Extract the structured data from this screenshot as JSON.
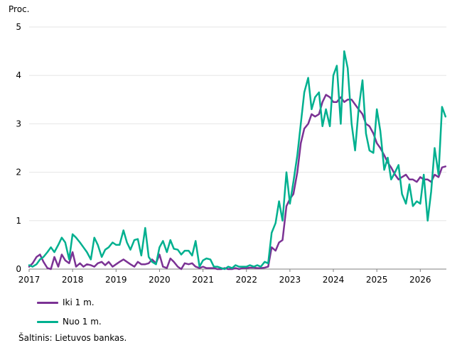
{
  "chart_data": {
    "type": "line",
    "ylabel": "Proc.",
    "ylim": [
      0,
      5
    ],
    "yticks": [
      0,
      1,
      2,
      3,
      4,
      5
    ],
    "xlim": [
      2017.0,
      2026.6
    ],
    "xticks": [
      "2017",
      "2018",
      "2019",
      "2020",
      "2021",
      "2022",
      "2023",
      "2024",
      "2025",
      "2026"
    ],
    "grid": "horizontal",
    "legend_position": "bottom-left",
    "series": [
      {
        "name": "Iki 1 m.",
        "color": "#7B3294",
        "points": [
          [
            2017.0,
            0.05
          ],
          [
            2017.08,
            0.12
          ],
          [
            2017.17,
            0.25
          ],
          [
            2017.25,
            0.3
          ],
          [
            2017.33,
            0.15
          ],
          [
            2017.42,
            0.02
          ],
          [
            2017.5,
            0.0
          ],
          [
            2017.58,
            0.25
          ],
          [
            2017.67,
            0.05
          ],
          [
            2017.75,
            0.3
          ],
          [
            2017.83,
            0.18
          ],
          [
            2017.92,
            0.12
          ],
          [
            2018.0,
            0.35
          ],
          [
            2018.08,
            0.05
          ],
          [
            2018.17,
            0.12
          ],
          [
            2018.25,
            0.05
          ],
          [
            2018.33,
            0.1
          ],
          [
            2018.42,
            0.08
          ],
          [
            2018.5,
            0.05
          ],
          [
            2018.58,
            0.12
          ],
          [
            2018.67,
            0.15
          ],
          [
            2018.75,
            0.08
          ],
          [
            2018.83,
            0.15
          ],
          [
            2018.92,
            0.05
          ],
          [
            2019.0,
            0.1
          ],
          [
            2019.08,
            0.15
          ],
          [
            2019.17,
            0.2
          ],
          [
            2019.25,
            0.15
          ],
          [
            2019.33,
            0.1
          ],
          [
            2019.42,
            0.05
          ],
          [
            2019.5,
            0.15
          ],
          [
            2019.58,
            0.1
          ],
          [
            2019.67,
            0.1
          ],
          [
            2019.75,
            0.12
          ],
          [
            2019.83,
            0.2
          ],
          [
            2019.92,
            0.12
          ],
          [
            2020.0,
            0.3
          ],
          [
            2020.08,
            0.05
          ],
          [
            2020.17,
            0.02
          ],
          [
            2020.25,
            0.22
          ],
          [
            2020.33,
            0.15
          ],
          [
            2020.42,
            0.05
          ],
          [
            2020.5,
            0.0
          ],
          [
            2020.58,
            0.12
          ],
          [
            2020.67,
            0.1
          ],
          [
            2020.75,
            0.12
          ],
          [
            2020.83,
            0.05
          ],
          [
            2020.92,
            0.02
          ],
          [
            2021.0,
            0.05
          ],
          [
            2021.08,
            0.02
          ],
          [
            2021.17,
            0.02
          ],
          [
            2021.25,
            0.02
          ],
          [
            2021.33,
            0.0
          ],
          [
            2021.42,
            0.0
          ],
          [
            2021.5,
            0.02
          ],
          [
            2021.58,
            0.0
          ],
          [
            2021.67,
            0.0
          ],
          [
            2021.75,
            0.02
          ],
          [
            2021.83,
            0.0
          ],
          [
            2021.92,
            0.02
          ],
          [
            2022.0,
            0.02
          ],
          [
            2022.08,
            0.03
          ],
          [
            2022.17,
            0.03
          ],
          [
            2022.25,
            0.02
          ],
          [
            2022.33,
            0.02
          ],
          [
            2022.42,
            0.03
          ],
          [
            2022.5,
            0.05
          ],
          [
            2022.58,
            0.45
          ],
          [
            2022.67,
            0.38
          ],
          [
            2022.75,
            0.55
          ],
          [
            2022.83,
            0.6
          ],
          [
            2022.92,
            1.3
          ],
          [
            2023.0,
            1.45
          ],
          [
            2023.08,
            1.55
          ],
          [
            2023.17,
            2.0
          ],
          [
            2023.25,
            2.6
          ],
          [
            2023.33,
            2.9
          ],
          [
            2023.42,
            3.0
          ],
          [
            2023.5,
            3.2
          ],
          [
            2023.58,
            3.15
          ],
          [
            2023.67,
            3.2
          ],
          [
            2023.75,
            3.45
          ],
          [
            2023.83,
            3.6
          ],
          [
            2023.92,
            3.55
          ],
          [
            2024.0,
            3.45
          ],
          [
            2024.08,
            3.45
          ],
          [
            2024.17,
            3.55
          ],
          [
            2024.25,
            3.45
          ],
          [
            2024.33,
            3.5
          ],
          [
            2024.42,
            3.5
          ],
          [
            2024.5,
            3.4
          ],
          [
            2024.58,
            3.3
          ],
          [
            2024.67,
            3.2
          ],
          [
            2024.75,
            3.0
          ],
          [
            2024.83,
            2.95
          ],
          [
            2024.92,
            2.8
          ],
          [
            2025.0,
            2.6
          ],
          [
            2025.08,
            2.5
          ],
          [
            2025.17,
            2.35
          ],
          [
            2025.25,
            2.2
          ],
          [
            2025.33,
            2.1
          ],
          [
            2025.42,
            1.95
          ],
          [
            2025.5,
            1.85
          ],
          [
            2025.58,
            1.9
          ],
          [
            2025.67,
            1.95
          ],
          [
            2025.75,
            1.85
          ],
          [
            2025.83,
            1.85
          ],
          [
            2025.92,
            1.8
          ],
          [
            2026.0,
            1.9
          ],
          [
            2026.08,
            1.85
          ],
          [
            2026.17,
            1.85
          ],
          [
            2026.25,
            1.8
          ],
          [
            2026.33,
            1.95
          ],
          [
            2026.42,
            1.9
          ],
          [
            2026.5,
            2.1
          ],
          [
            2026.58,
            2.12
          ]
        ]
      },
      {
        "name": "Nuo 1 m.",
        "color": "#00B08F",
        "points": [
          [
            2017.0,
            0.08
          ],
          [
            2017.08,
            0.05
          ],
          [
            2017.17,
            0.1
          ],
          [
            2017.25,
            0.2
          ],
          [
            2017.33,
            0.25
          ],
          [
            2017.42,
            0.35
          ],
          [
            2017.5,
            0.45
          ],
          [
            2017.58,
            0.35
          ],
          [
            2017.67,
            0.5
          ],
          [
            2017.75,
            0.65
          ],
          [
            2017.83,
            0.55
          ],
          [
            2017.92,
            0.2
          ],
          [
            2018.0,
            0.72
          ],
          [
            2018.08,
            0.65
          ],
          [
            2018.17,
            0.55
          ],
          [
            2018.25,
            0.45
          ],
          [
            2018.33,
            0.35
          ],
          [
            2018.42,
            0.2
          ],
          [
            2018.5,
            0.65
          ],
          [
            2018.58,
            0.5
          ],
          [
            2018.67,
            0.25
          ],
          [
            2018.75,
            0.4
          ],
          [
            2018.83,
            0.45
          ],
          [
            2018.92,
            0.55
          ],
          [
            2019.0,
            0.5
          ],
          [
            2019.08,
            0.5
          ],
          [
            2019.17,
            0.8
          ],
          [
            2019.25,
            0.55
          ],
          [
            2019.33,
            0.4
          ],
          [
            2019.42,
            0.6
          ],
          [
            2019.5,
            0.62
          ],
          [
            2019.58,
            0.28
          ],
          [
            2019.67,
            0.85
          ],
          [
            2019.75,
            0.25
          ],
          [
            2019.83,
            0.15
          ],
          [
            2019.92,
            0.1
          ],
          [
            2020.0,
            0.45
          ],
          [
            2020.08,
            0.58
          ],
          [
            2020.17,
            0.35
          ],
          [
            2020.25,
            0.6
          ],
          [
            2020.33,
            0.42
          ],
          [
            2020.42,
            0.4
          ],
          [
            2020.5,
            0.3
          ],
          [
            2020.58,
            0.38
          ],
          [
            2020.67,
            0.38
          ],
          [
            2020.75,
            0.28
          ],
          [
            2020.83,
            0.58
          ],
          [
            2020.92,
            0.05
          ],
          [
            2021.0,
            0.18
          ],
          [
            2021.08,
            0.22
          ],
          [
            2021.17,
            0.2
          ],
          [
            2021.25,
            0.05
          ],
          [
            2021.33,
            0.05
          ],
          [
            2021.42,
            0.02
          ],
          [
            2021.5,
            0.0
          ],
          [
            2021.58,
            0.05
          ],
          [
            2021.67,
            0.02
          ],
          [
            2021.75,
            0.08
          ],
          [
            2021.83,
            0.05
          ],
          [
            2021.92,
            0.05
          ],
          [
            2022.0,
            0.05
          ],
          [
            2022.08,
            0.08
          ],
          [
            2022.17,
            0.05
          ],
          [
            2022.25,
            0.08
          ],
          [
            2022.33,
            0.05
          ],
          [
            2022.42,
            0.15
          ],
          [
            2022.5,
            0.12
          ],
          [
            2022.58,
            0.75
          ],
          [
            2022.67,
            0.95
          ],
          [
            2022.75,
            1.4
          ],
          [
            2022.83,
            1.0
          ],
          [
            2022.92,
            2.0
          ],
          [
            2023.0,
            1.35
          ],
          [
            2023.08,
            1.8
          ],
          [
            2023.17,
            2.35
          ],
          [
            2023.25,
            3.0
          ],
          [
            2023.33,
            3.65
          ],
          [
            2023.42,
            3.95
          ],
          [
            2023.5,
            3.3
          ],
          [
            2023.58,
            3.55
          ],
          [
            2023.67,
            3.65
          ],
          [
            2023.75,
            2.95
          ],
          [
            2023.83,
            3.3
          ],
          [
            2023.92,
            2.95
          ],
          [
            2024.0,
            4.0
          ],
          [
            2024.08,
            4.2
          ],
          [
            2024.17,
            3.0
          ],
          [
            2024.25,
            4.5
          ],
          [
            2024.33,
            4.15
          ],
          [
            2024.42,
            3.0
          ],
          [
            2024.5,
            2.45
          ],
          [
            2024.58,
            3.3
          ],
          [
            2024.67,
            3.9
          ],
          [
            2024.75,
            2.8
          ],
          [
            2024.83,
            2.45
          ],
          [
            2024.92,
            2.4
          ],
          [
            2025.0,
            3.3
          ],
          [
            2025.08,
            2.85
          ],
          [
            2025.17,
            2.05
          ],
          [
            2025.25,
            2.3
          ],
          [
            2025.33,
            1.85
          ],
          [
            2025.42,
            2.0
          ],
          [
            2025.5,
            2.15
          ],
          [
            2025.58,
            1.55
          ],
          [
            2025.67,
            1.35
          ],
          [
            2025.75,
            1.75
          ],
          [
            2025.83,
            1.3
          ],
          [
            2025.92,
            1.4
          ],
          [
            2026.0,
            1.35
          ],
          [
            2026.08,
            1.95
          ],
          [
            2026.17,
            1.0
          ],
          [
            2026.25,
            1.6
          ],
          [
            2026.33,
            2.5
          ],
          [
            2026.42,
            1.95
          ],
          [
            2026.5,
            3.35
          ],
          [
            2026.58,
            3.15
          ]
        ]
      }
    ]
  },
  "source": "Šaltinis: Lietuvos bankas."
}
